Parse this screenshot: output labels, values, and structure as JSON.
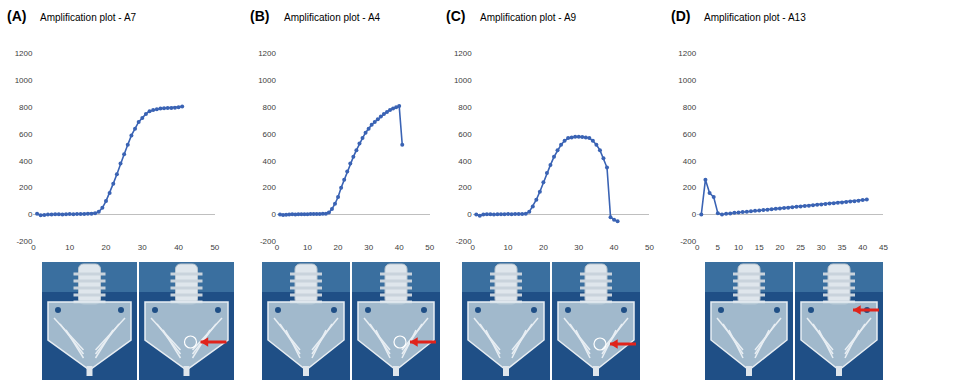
{
  "chart_data": [
    {
      "type": "line",
      "annotations": [
        "(A)"
      ],
      "title": "Amplification plot - A7",
      "color": "#3a63b4",
      "marker": "circle",
      "grid": false,
      "x": [
        1,
        2,
        3,
        4,
        5,
        6,
        7,
        8,
        9,
        10,
        11,
        12,
        13,
        14,
        15,
        16,
        17,
        18,
        19,
        20,
        21,
        22,
        23,
        24,
        25,
        26,
        27,
        28,
        29,
        30,
        31,
        32,
        33,
        34,
        35,
        36,
        37,
        38,
        39,
        40,
        41
      ],
      "values": [
        5,
        -5,
        -3,
        0,
        0,
        2,
        1,
        0,
        2,
        3,
        2,
        3,
        4,
        4,
        5,
        5,
        10,
        20,
        50,
        100,
        160,
        230,
        300,
        380,
        450,
        520,
        590,
        640,
        690,
        720,
        750,
        770,
        780,
        785,
        790,
        792,
        794,
        795,
        797,
        800,
        805
      ],
      "xlim": [
        0,
        50
      ],
      "xticks": [
        0,
        10,
        20,
        30,
        40,
        50
      ],
      "ylim": [
        -200,
        1200
      ],
      "yticks": [
        -200,
        0,
        200,
        400,
        600,
        800,
        1000,
        1200
      ]
    },
    {
      "type": "line",
      "annotations": [
        "(B)"
      ],
      "title": "Amplification plot - A4",
      "color": "#3a63b4",
      "marker": "circle",
      "grid": false,
      "x": [
        1,
        2,
        3,
        4,
        5,
        6,
        7,
        8,
        9,
        10,
        11,
        12,
        13,
        14,
        15,
        16,
        17,
        18,
        19,
        20,
        21,
        22,
        23,
        24,
        25,
        26,
        27,
        28,
        29,
        30,
        31,
        32,
        33,
        34,
        35,
        36,
        37,
        38,
        39,
        40,
        41
      ],
      "values": [
        0,
        -3,
        -2,
        0,
        1,
        0,
        2,
        1,
        2,
        2,
        3,
        3,
        4,
        4,
        5,
        5,
        15,
        40,
        80,
        130,
        200,
        260,
        320,
        380,
        430,
        480,
        530,
        570,
        610,
        640,
        670,
        690,
        710,
        730,
        750,
        765,
        780,
        790,
        800,
        810,
        520
      ],
      "xlim": [
        0,
        50
      ],
      "xticks": [
        0,
        10,
        20,
        30,
        40,
        50
      ],
      "ylim": [
        -200,
        1200
      ],
      "yticks": [
        -200,
        0,
        200,
        400,
        600,
        800,
        1000,
        1200
      ]
    },
    {
      "type": "line",
      "annotations": [
        "(C)"
      ],
      "title": "Amplification plot - A9",
      "color": "#3a63b4",
      "marker": "circle",
      "grid": false,
      "x": [
        1,
        2,
        3,
        4,
        5,
        6,
        7,
        8,
        9,
        10,
        11,
        12,
        13,
        14,
        15,
        16,
        17,
        18,
        19,
        20,
        21,
        22,
        23,
        24,
        25,
        26,
        27,
        28,
        29,
        30,
        31,
        32,
        33,
        34,
        35,
        36,
        37,
        38,
        39,
        40,
        41
      ],
      "values": [
        0,
        -10,
        0,
        2,
        1,
        0,
        2,
        1,
        2,
        3,
        2,
        3,
        4,
        4,
        5,
        20,
        60,
        110,
        170,
        240,
        310,
        370,
        430,
        480,
        520,
        550,
        570,
        575,
        580,
        580,
        578,
        575,
        570,
        550,
        520,
        480,
        420,
        350,
        -20,
        -40,
        -50
      ],
      "xlim": [
        0,
        50
      ],
      "xticks": [
        0,
        10,
        20,
        30,
        40,
        50
      ],
      "ylim": [
        -200,
        1200
      ],
      "yticks": [
        -200,
        0,
        200,
        400,
        600,
        800,
        1000,
        1200
      ]
    },
    {
      "type": "line",
      "annotations": [
        "(D)"
      ],
      "title": "Amplification plot - A13",
      "color": "#3a63b4",
      "marker": "circle",
      "grid": false,
      "x": [
        1,
        2,
        3,
        4,
        5,
        6,
        7,
        8,
        9,
        10,
        11,
        12,
        13,
        14,
        15,
        16,
        17,
        18,
        19,
        20,
        21,
        22,
        23,
        24,
        25,
        26,
        27,
        28,
        29,
        30,
        31,
        32,
        33,
        34,
        35,
        36,
        37,
        38,
        39,
        40,
        41
      ],
      "values": [
        0,
        260,
        160,
        130,
        10,
        0,
        5,
        8,
        12,
        15,
        18,
        21,
        24,
        27,
        30,
        33,
        36,
        39,
        42,
        45,
        48,
        51,
        54,
        57,
        60,
        63,
        66,
        69,
        72,
        75,
        78,
        81,
        84,
        87,
        90,
        93,
        96,
        99,
        102,
        108,
        112
      ],
      "xlim": [
        0,
        45
      ],
      "xticks": [
        0,
        5,
        10,
        15,
        20,
        25,
        30,
        35,
        40,
        45
      ],
      "ylim": [
        -200,
        1200
      ],
      "yticks": [
        -200,
        0,
        200,
        400,
        600,
        800,
        1000,
        1200
      ]
    }
  ]
}
